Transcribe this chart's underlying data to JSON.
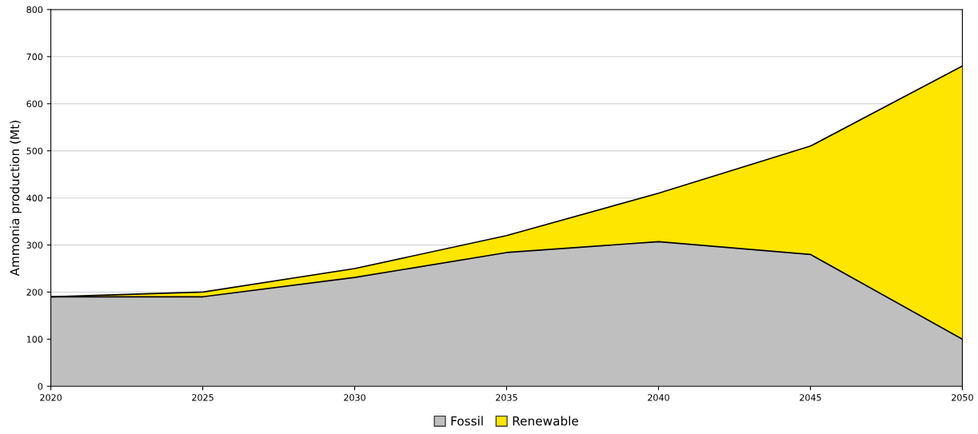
{
  "chart_data": {
    "type": "area",
    "stacked": true,
    "ylabel": "Ammonia production (Mt)",
    "x": [
      2020,
      2025,
      2030,
      2035,
      2040,
      2045,
      2050
    ],
    "series": [
      {
        "name": "Fossil",
        "color": "#bfbfbf",
        "values": [
          190,
          190,
          231,
          284,
          307,
          280,
          100
        ]
      },
      {
        "name": "Renewable",
        "color": "#ffe600",
        "values": [
          0,
          10,
          19,
          36,
          103,
          230,
          580
        ]
      }
    ],
    "xlim": [
      2020,
      2050
    ],
    "xticks": [
      2020,
      2025,
      2030,
      2035,
      2040,
      2045,
      2050
    ],
    "ylim": [
      0,
      800
    ],
    "yticks": [
      0,
      100,
      200,
      300,
      400,
      500,
      600,
      700,
      800
    ],
    "grid": "y",
    "legend": "bottom"
  }
}
